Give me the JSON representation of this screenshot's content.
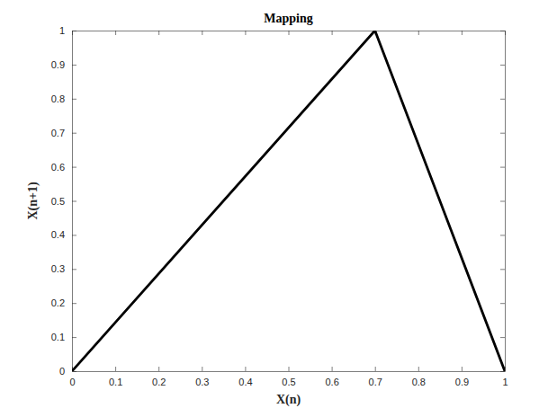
{
  "chart_data": {
    "type": "line",
    "title": "Mapping",
    "x_label": "X(n)",
    "y_label": "X(n+1)",
    "x": [
      0,
      0.7,
      1
    ],
    "values": [
      0,
      1,
      0
    ],
    "color": "#000000",
    "line_style": "solid",
    "xlim": [
      0,
      1
    ],
    "xticks": [
      0,
      0.1,
      0.2,
      0.3,
      0.4,
      0.5,
      0.6,
      0.7,
      0.8,
      0.9,
      1
    ],
    "ylim": [
      0,
      1
    ],
    "yticks": [
      0,
      0.1,
      0.2,
      0.3,
      0.4,
      0.5,
      0.6,
      0.7,
      0.8,
      0.9,
      1
    ],
    "grid": false
  }
}
